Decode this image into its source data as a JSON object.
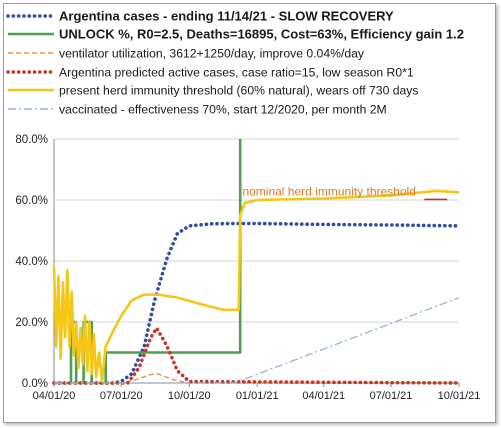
{
  "chart_data": {
    "type": "line",
    "xlim": [
      "2020-04-01",
      "2021-10-01"
    ],
    "ylim": [
      0,
      80
    ],
    "ytick_labels": [
      "0.0%",
      "20.0%",
      "40.0%",
      "60.0%",
      "80.0%"
    ],
    "xtick_labels": [
      "04/01/20",
      "07/01/20",
      "10/01/20",
      "01/01/21",
      "04/01/21",
      "07/01/21",
      "10/01/21"
    ],
    "legend_position": "top",
    "annotation": {
      "text": "nominal herd immunity threshold",
      "color": "#e07b22"
    },
    "series": [
      {
        "name": "Argentina cases - ending 11/14/21 - SLOW RECOVERY",
        "color": "#2e4f9e",
        "style": "dotted-bold",
        "x": [
          "2020-04-01",
          "2020-06-20",
          "2020-07-01",
          "2020-07-15",
          "2020-08-01",
          "2020-08-15",
          "2020-09-01",
          "2020-09-15",
          "2020-10-01",
          "2020-11-01",
          "2020-12-01",
          "2021-01-01",
          "2021-04-01",
          "2021-07-01",
          "2021-10-01"
        ],
        "y": [
          0,
          0,
          0.5,
          3,
          12,
          27,
          41,
          49,
          51.5,
          52.2,
          52.3,
          52.3,
          52,
          51.8,
          51.5
        ]
      },
      {
        "name": "UNLOCK %, R0=2.5,  Deaths=16895, Cost=63%, Efficiency gain 1.2",
        "color": "#4ea04e",
        "style": "solid",
        "x": [
          "2020-04-01",
          "2020-04-24",
          "2020-04-24",
          "2020-05-01",
          "2020-05-01",
          "2020-05-11",
          "2020-05-11",
          "2020-05-22",
          "2020-05-22",
          "2020-06-10",
          "2020-06-10",
          "2020-12-09",
          "2020-12-09",
          "2020-12-09",
          "2020-12-09"
        ],
        "y": [
          0,
          0,
          20,
          20,
          0,
          0,
          20,
          20,
          0,
          0,
          10,
          10,
          80,
          80,
          80
        ]
      },
      {
        "name": "ventilator utilization, 3612+1250/day, improve 0.04%/day",
        "color": "#f08a3a",
        "style": "dashed",
        "x": [
          "2020-04-01",
          "2020-07-01",
          "2020-07-20",
          "2020-08-10",
          "2020-08-20",
          "2020-09-10",
          "2020-10-01",
          "2021-10-01"
        ],
        "y": [
          0,
          0,
          1,
          2.8,
          3,
          1,
          0,
          0
        ]
      },
      {
        "name": "Argentina predicted active cases, case ratio=15, low season R0*1",
        "color": "#c0392b",
        "style": "dotted-bold",
        "x": [
          "2020-04-01",
          "2020-07-10",
          "2020-07-25",
          "2020-08-10",
          "2020-08-18",
          "2020-09-01",
          "2020-09-15",
          "2020-10-01",
          "2021-10-01"
        ],
        "y": [
          0,
          0,
          5,
          15,
          18,
          12,
          4,
          0.5,
          0
        ]
      },
      {
        "name": "present herd immunity threshold (60% natural), wears off 730 days",
        "color": "#f5c518",
        "style": "solid",
        "x": [
          "2020-04-01",
          "2020-04-04",
          "2020-04-07",
          "2020-04-10",
          "2020-04-13",
          "2020-04-16",
          "2020-04-19",
          "2020-04-22",
          "2020-04-25",
          "2020-04-28",
          "2020-05-01",
          "2020-05-04",
          "2020-05-07",
          "2020-05-10",
          "2020-05-13",
          "2020-05-16",
          "2020-05-19",
          "2020-05-22",
          "2020-05-25",
          "2020-05-28",
          "2020-06-01",
          "2020-06-05",
          "2020-06-10",
          "2020-06-20",
          "2020-07-01",
          "2020-07-15",
          "2020-08-01",
          "2020-08-20",
          "2020-09-15",
          "2020-10-15",
          "2020-11-15",
          "2020-12-07",
          "2020-12-09",
          "2020-12-15",
          "2021-01-01",
          "2021-04-01",
          "2021-07-01",
          "2021-09-01",
          "2021-10-01"
        ],
        "y": [
          38,
          12,
          35,
          8,
          33,
          15,
          37,
          12,
          30,
          9,
          20,
          5,
          18,
          6,
          22,
          4,
          20,
          3,
          16,
          2,
          10,
          0.5,
          12,
          17,
          22,
          27,
          29,
          29,
          28,
          26,
          24,
          24,
          55,
          59,
          60,
          60.5,
          61.5,
          63,
          62.5
        ]
      },
      {
        "name": "vaccinated - effectiveness 70%, start 12/2020, per month 2M",
        "color": "#9ab8d8",
        "style": "dashdot",
        "x": [
          "2020-04-01",
          "2020-12-01",
          "2021-10-01"
        ],
        "y": [
          0,
          0,
          28
        ]
      }
    ]
  }
}
